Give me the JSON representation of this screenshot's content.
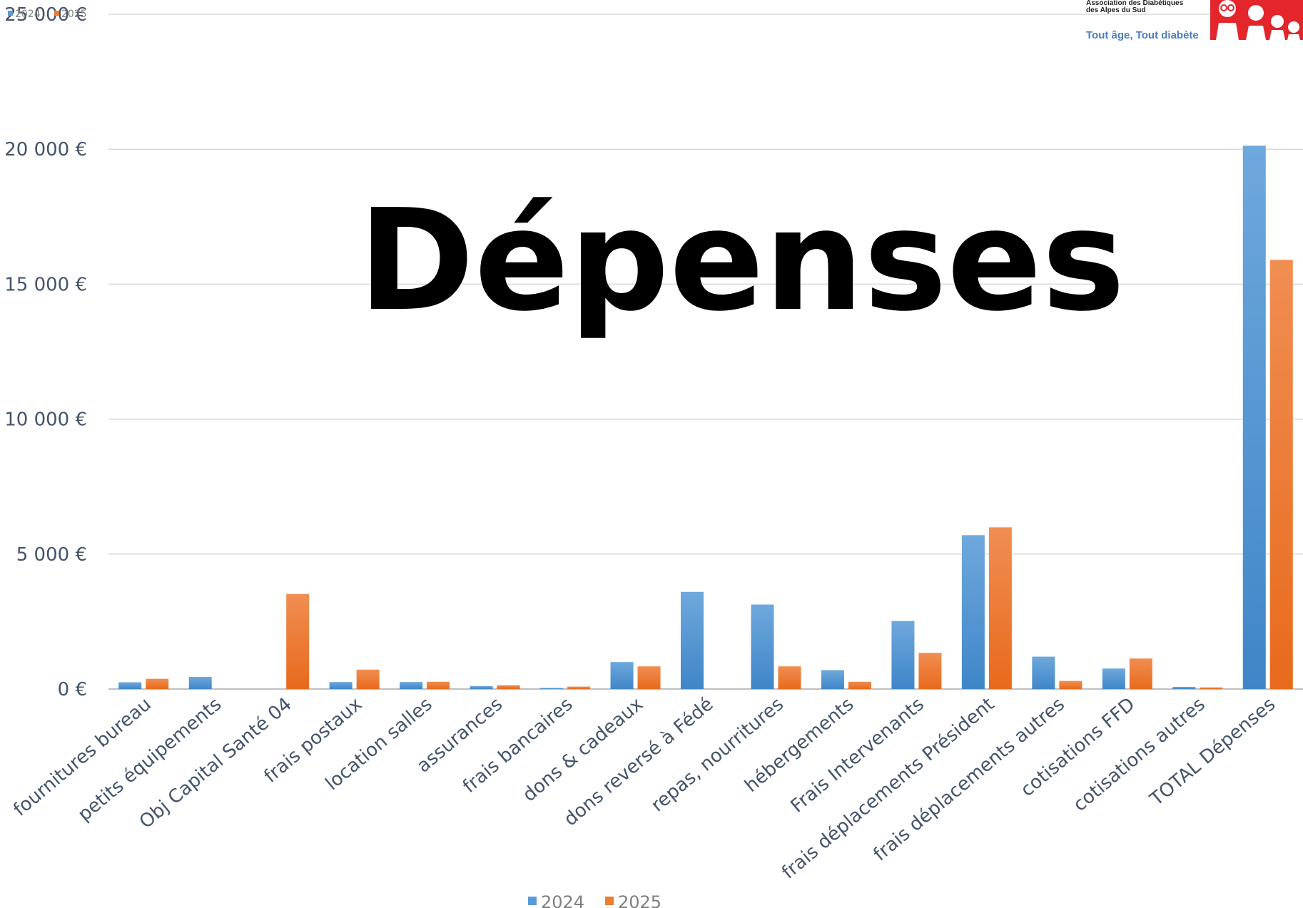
{
  "colors": {
    "series_2024": "#5b9bd5",
    "series_2025": "#ed7d31",
    "grid": "#d9d9d9",
    "axis_text": "#44546a",
    "logo_red": "#e3262b",
    "tagline": "#4a7fc0"
  },
  "logo": {
    "org_line1": "Association des Diabétiques",
    "org_line2": "des Alpes du Sud",
    "tagline": "Tout âge, Tout diabète",
    "icon": "family-icon"
  },
  "chart_data": {
    "type": "bar",
    "title": "Dépenses",
    "xlabel": "",
    "ylabel": "",
    "ylim": [
      0,
      25000
    ],
    "y_ticks": [
      "0 €",
      "5 000 €",
      "10 000 €",
      "15 000 €",
      "20 000 €",
      "25 000 €"
    ],
    "y_tick_values": [
      0,
      5000,
      10000,
      15000,
      20000,
      25000
    ],
    "grid": true,
    "legend_placement": "top-left and bottom",
    "legend": [
      "2024",
      "2025"
    ],
    "categories": [
      "fournitures bureau",
      "petits équipements",
      "Obj Capital Santé 04",
      "frais postaux",
      "location salles",
      "assurances",
      "frais bancaires",
      "dons & cadeaux",
      "dons reversé à Fédé",
      "repas, nourritures",
      "hébergements",
      "Frais Intervenants",
      "frais déplacements Président",
      "frais déplacements autres",
      "cotisations FFD",
      "cotisations autres",
      "TOTAL Dépenses"
    ],
    "series": [
      {
        "name": "2024",
        "values": [
          250,
          450,
          0,
          260,
          260,
          110,
          40,
          1000,
          3600,
          3130,
          700,
          2520,
          5700,
          1200,
          760,
          80,
          20130
        ]
      },
      {
        "name": "2025",
        "values": [
          380,
          0,
          3520,
          720,
          270,
          140,
          90,
          840,
          0,
          840,
          270,
          1340,
          5990,
          300,
          1130,
          60,
          15900
        ]
      }
    ]
  }
}
